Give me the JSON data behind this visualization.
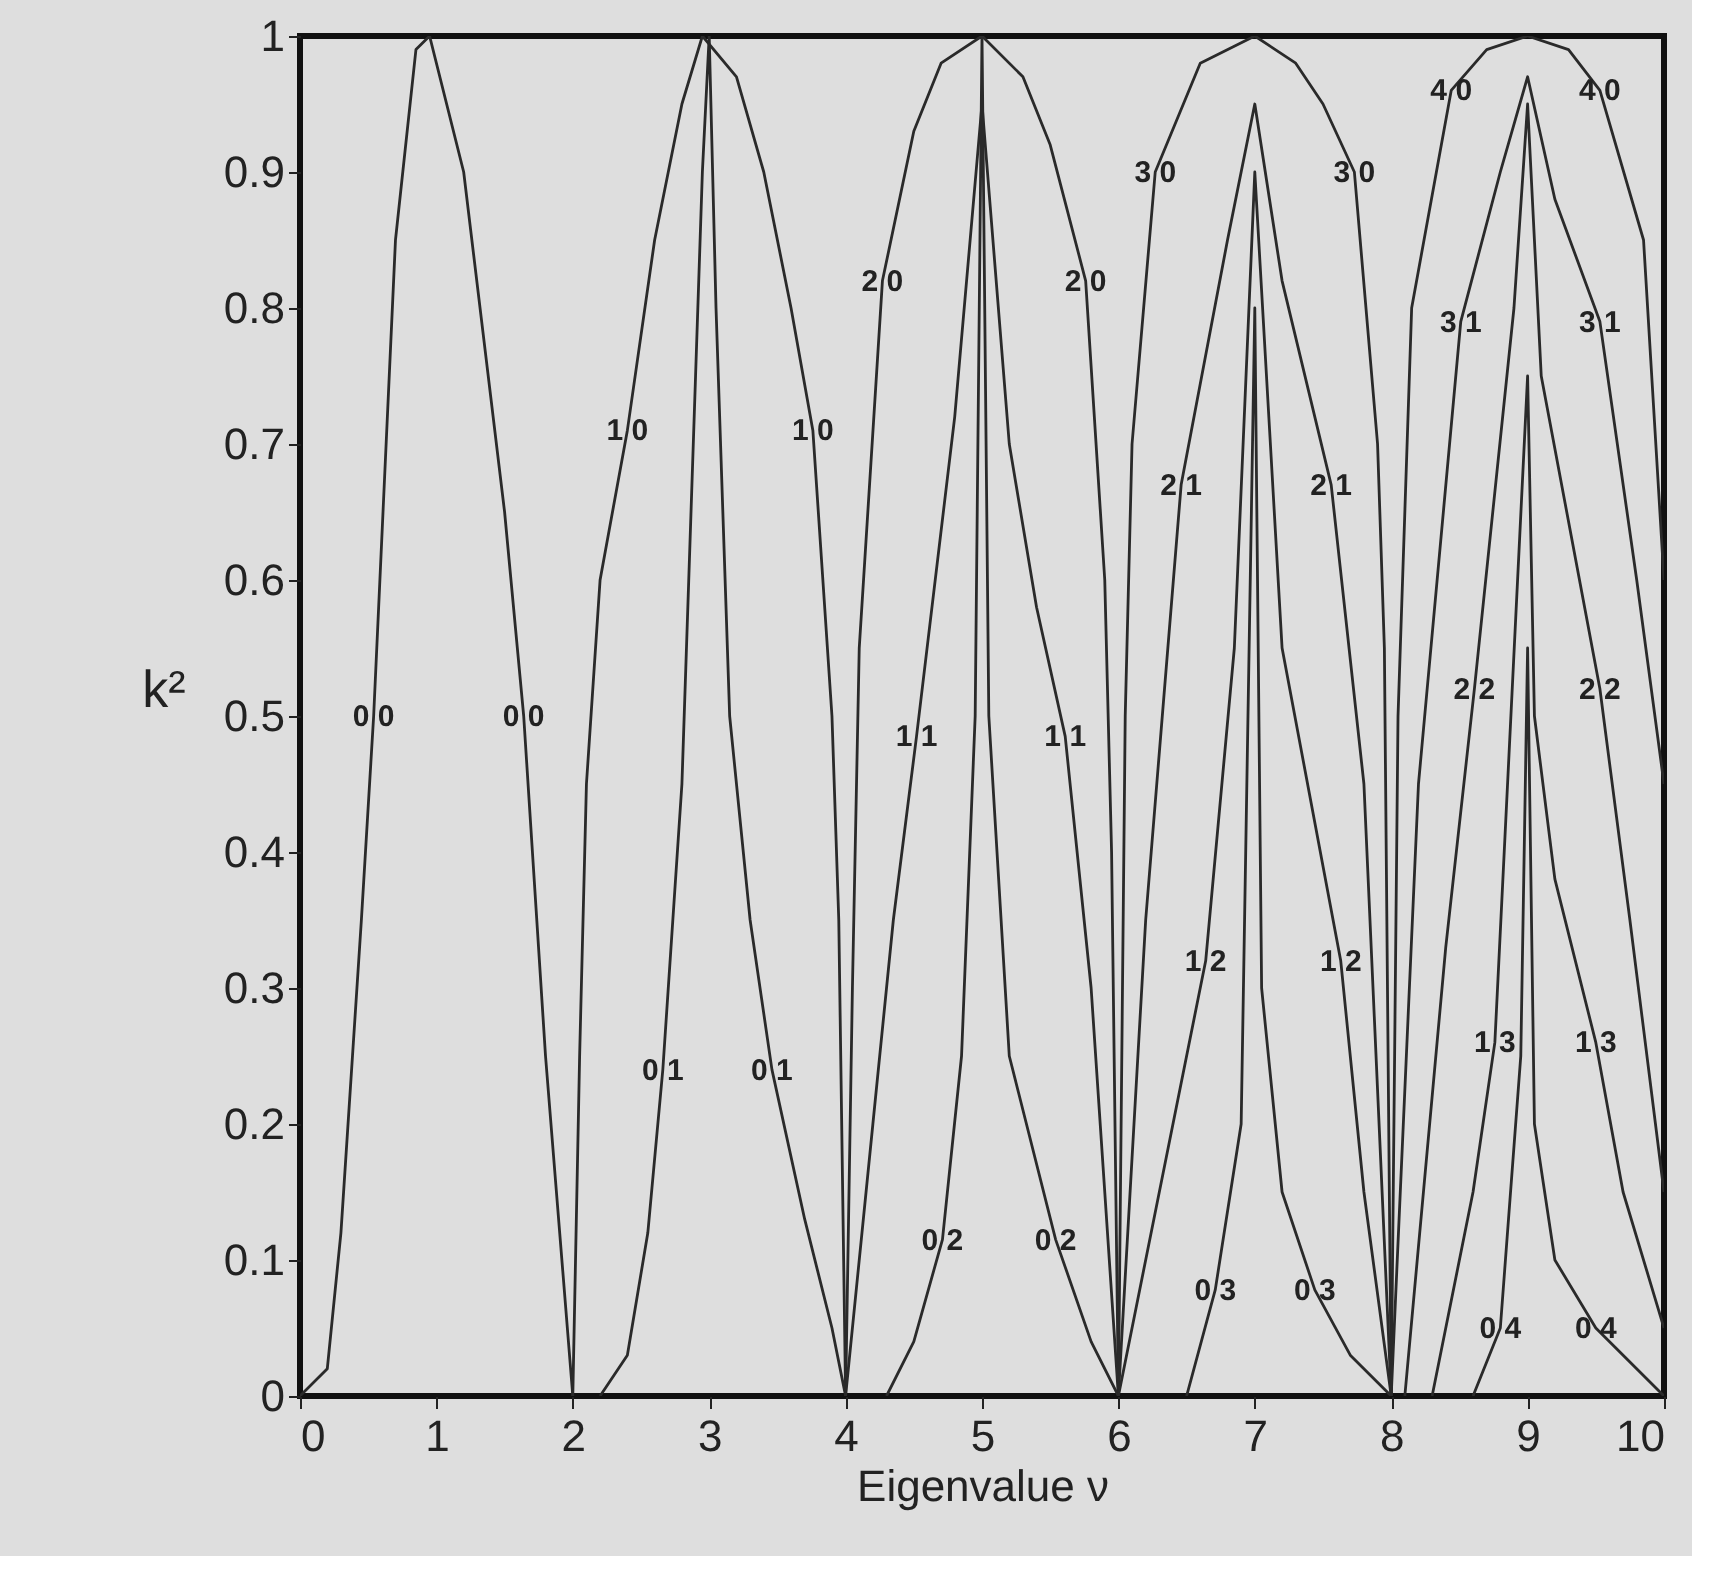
{
  "chart_data": {
    "type": "line",
    "xlabel": "Eigenvalue  ν",
    "ylabel": "k²",
    "xlim": [
      0,
      10
    ],
    "ylim": [
      0,
      1
    ],
    "xticks": [
      0,
      1,
      2,
      3,
      4,
      5,
      6,
      7,
      8,
      9,
      10
    ],
    "yticks": [
      0,
      0.1,
      0.2,
      0.3,
      0.4,
      0.5,
      0.6,
      0.7,
      0.8,
      0.9,
      1
    ],
    "grid": false,
    "marker": "none",
    "line_style": "solid",
    "series": [
      {
        "color": "#2a2a2a",
        "x": [
          0,
          0.2,
          0.3,
          0.45,
          0.54,
          0.7,
          0.85,
          0.95,
          1.2,
          1.5,
          1.64,
          1.8,
          2
        ],
        "values": [
          0,
          0.02,
          0.12,
          0.35,
          0.5,
          0.85,
          0.99,
          1,
          0.9,
          0.65,
          0.5,
          0.25,
          0
        ]
      },
      {
        "color": "#2a2a2a",
        "x": [
          2,
          2.05,
          2.1,
          2.2,
          2.4,
          2.6,
          2.8,
          2.95,
          3.2,
          3.4,
          3.6,
          3.76,
          3.9,
          3.95,
          4
        ],
        "values": [
          0,
          0.25,
          0.45,
          0.6,
          0.71,
          0.85,
          0.95,
          1,
          0.97,
          0.9,
          0.8,
          0.71,
          0.5,
          0.35,
          0
        ]
      },
      {
        "color": "#2a2a2a",
        "x": [
          2.2,
          2.4,
          2.55,
          2.66,
          2.8,
          2.9,
          2.95,
          3,
          3.05,
          3.15,
          3.3,
          3.46,
          3.7,
          3.9,
          4
        ],
        "values": [
          0,
          0.03,
          0.12,
          0.24,
          0.45,
          0.75,
          0.9,
          1,
          0.8,
          0.5,
          0.35,
          0.24,
          0.13,
          0.05,
          0
        ]
      },
      {
        "color": "#2a2a2a",
        "x": [
          4,
          4.05,
          4.1,
          4.27,
          4.5,
          4.7,
          5,
          5.3,
          5.5,
          5.76,
          5.9,
          5.95,
          6
        ],
        "values": [
          0,
          0.3,
          0.55,
          0.82,
          0.93,
          0.98,
          1,
          0.97,
          0.92,
          0.82,
          0.6,
          0.4,
          0
        ]
      },
      {
        "color": "#2a2a2a",
        "x": [
          4,
          4.2,
          4.35,
          4.52,
          4.8,
          5,
          5.2,
          5.4,
          5.61,
          5.8,
          6
        ],
        "values": [
          0,
          0.2,
          0.35,
          0.485,
          0.72,
          0.95,
          0.7,
          0.58,
          0.485,
          0.3,
          0
        ]
      },
      {
        "color": "#2a2a2a",
        "x": [
          4.3,
          4.5,
          4.71,
          4.85,
          4.95,
          5,
          5.05,
          5.2,
          5.54,
          5.8,
          6
        ],
        "values": [
          0,
          0.04,
          0.115,
          0.25,
          0.5,
          1,
          0.5,
          0.25,
          0.115,
          0.04,
          0
        ]
      },
      {
        "color": "#2a2a2a",
        "x": [
          6,
          6.05,
          6.1,
          6.27,
          6.6,
          7,
          7.3,
          7.5,
          7.73,
          7.9,
          7.95,
          8
        ],
        "values": [
          0,
          0.5,
          0.7,
          0.9,
          0.98,
          1,
          0.98,
          0.95,
          0.9,
          0.7,
          0.55,
          0
        ]
      },
      {
        "color": "#2a2a2a",
        "x": [
          6,
          6.2,
          6.46,
          6.8,
          7,
          7.2,
          7.56,
          7.8,
          8
        ],
        "values": [
          0,
          0.35,
          0.67,
          0.85,
          0.95,
          0.82,
          0.67,
          0.45,
          0
        ]
      },
      {
        "color": "#2a2a2a",
        "x": [
          6,
          6.3,
          6.64,
          6.85,
          7,
          7.2,
          7.63,
          7.8,
          8
        ],
        "values": [
          0,
          0.15,
          0.32,
          0.55,
          0.9,
          0.55,
          0.32,
          0.15,
          0
        ]
      },
      {
        "color": "#2a2a2a",
        "x": [
          6.5,
          6.71,
          6.9,
          7,
          7.05,
          7.2,
          7.44,
          7.7,
          8
        ],
        "values": [
          0,
          0.078,
          0.2,
          0.8,
          0.3,
          0.15,
          0.078,
          0.03,
          0
        ]
      },
      {
        "color": "#2a2a2a",
        "x": [
          8,
          8.05,
          8.15,
          8.44,
          8.7,
          9,
          9.3,
          9.53,
          9.85,
          10
        ],
        "values": [
          0,
          0.5,
          0.8,
          0.96,
          0.99,
          1,
          0.99,
          0.96,
          0.85,
          0.6
        ]
      },
      {
        "color": "#2a2a2a",
        "x": [
          8,
          8.2,
          8.51,
          8.8,
          9,
          9.2,
          9.53,
          9.8,
          10
        ],
        "values": [
          0,
          0.45,
          0.79,
          0.9,
          0.97,
          0.88,
          0.79,
          0.6,
          0.45
        ]
      },
      {
        "color": "#2a2a2a",
        "x": [
          8.1,
          8.4,
          8.61,
          8.9,
          9,
          9.1,
          9.53,
          9.75,
          10
        ],
        "values": [
          0,
          0.33,
          0.52,
          0.8,
          0.95,
          0.75,
          0.52,
          0.35,
          0.15
        ]
      },
      {
        "color": "#2a2a2a",
        "x": [
          8.3,
          8.6,
          8.76,
          9,
          9.05,
          9.2,
          9.5,
          9.7,
          10
        ],
        "values": [
          0,
          0.15,
          0.26,
          0.75,
          0.5,
          0.38,
          0.26,
          0.15,
          0.05
        ]
      },
      {
        "color": "#2a2a2a",
        "x": [
          8.6,
          8.8,
          8.95,
          9,
          9.05,
          9.2,
          9.5,
          10
        ],
        "values": [
          0,
          0.05,
          0.25,
          0.55,
          0.2,
          0.1,
          0.05,
          0
        ]
      }
    ],
    "annotations": [
      {
        "text": "0 0",
        "x": 0.54,
        "y": 0.5
      },
      {
        "text": "0 0",
        "x": 1.64,
        "y": 0.5
      },
      {
        "text": "1 0",
        "x": 2.4,
        "y": 0.71
      },
      {
        "text": "1 0",
        "x": 3.76,
        "y": 0.71
      },
      {
        "text": "0 1",
        "x": 2.66,
        "y": 0.24
      },
      {
        "text": "0 1",
        "x": 3.46,
        "y": 0.24
      },
      {
        "text": "2 0",
        "x": 4.27,
        "y": 0.82
      },
      {
        "text": "2 0",
        "x": 5.76,
        "y": 0.82
      },
      {
        "text": "1 1",
        "x": 4.52,
        "y": 0.485
      },
      {
        "text": "1 1",
        "x": 5.61,
        "y": 0.485
      },
      {
        "text": "0 2",
        "x": 4.71,
        "y": 0.115
      },
      {
        "text": "0 2",
        "x": 5.54,
        "y": 0.115
      },
      {
        "text": "3 0",
        "x": 6.27,
        "y": 0.9
      },
      {
        "text": "3 0",
        "x": 7.73,
        "y": 0.9
      },
      {
        "text": "2 1",
        "x": 6.46,
        "y": 0.67
      },
      {
        "text": "2 1",
        "x": 7.56,
        "y": 0.67
      },
      {
        "text": "1 2",
        "x": 6.64,
        "y": 0.32
      },
      {
        "text": "1 2",
        "x": 7.63,
        "y": 0.32
      },
      {
        "text": "0 3",
        "x": 6.71,
        "y": 0.078
      },
      {
        "text": "0 3",
        "x": 7.44,
        "y": 0.078
      },
      {
        "text": "4 0",
        "x": 8.44,
        "y": 0.96
      },
      {
        "text": "4 0",
        "x": 9.53,
        "y": 0.96
      },
      {
        "text": "3 1",
        "x": 8.51,
        "y": 0.79
      },
      {
        "text": "3 1",
        "x": 9.53,
        "y": 0.79
      },
      {
        "text": "2 2",
        "x": 8.61,
        "y": 0.52
      },
      {
        "text": "2 2",
        "x": 9.53,
        "y": 0.52
      },
      {
        "text": "1 3",
        "x": 8.76,
        "y": 0.26
      },
      {
        "text": "1 3",
        "x": 9.5,
        "y": 0.26
      },
      {
        "text": "0 4",
        "x": 8.8,
        "y": 0.05
      },
      {
        "text": "0 4",
        "x": 9.5,
        "y": 0.05
      }
    ]
  }
}
